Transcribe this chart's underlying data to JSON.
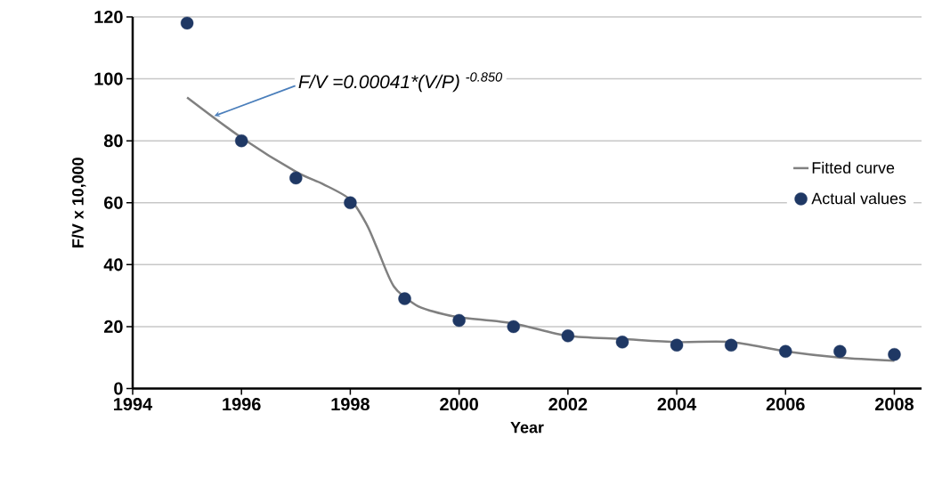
{
  "chart_data": {
    "type": "line",
    "xlabel": "Year",
    "ylabel": "F/V x 10,000",
    "xlim": [
      1994,
      2008.5
    ],
    "xticks": [
      1994,
      1996,
      1998,
      2000,
      2002,
      2004,
      2006,
      2008
    ],
    "ylim": [
      0,
      120
    ],
    "yticks": [
      0,
      20,
      40,
      60,
      80,
      100,
      120
    ],
    "grid": "y",
    "legend": "right",
    "annotations": [
      {
        "text": "F/V =0.00041*(V/P) $^{-0.850}$",
        "x": 1995.5,
        "y": 88
      }
    ],
    "series": [
      {
        "name": "Fitted curve",
        "color": "#808080",
        "marker": "none",
        "x": [
          1995,
          1996,
          1997,
          1997.5,
          1998,
          1998.3,
          1998.5,
          1998.8,
          1999.2,
          1999.5,
          2000,
          2001,
          2002,
          2003,
          2004,
          2005,
          2006,
          2007,
          2008
        ],
        "values": [
          94,
          81,
          70,
          66,
          61,
          53,
          45,
          33,
          27,
          25,
          23,
          21,
          17,
          16,
          15,
          15,
          12,
          10,
          9
        ]
      },
      {
        "name": "Actual values",
        "type": "scatter",
        "color": "#1f3864",
        "marker": "circle",
        "x": [
          1995,
          1996,
          1997,
          1998,
          1999,
          2000,
          2001,
          2002,
          2003,
          2004,
          2005,
          2006,
          2007,
          2008
        ],
        "values": [
          118,
          80,
          68,
          60,
          29,
          22,
          20,
          17,
          15,
          14,
          14,
          12,
          12,
          11
        ]
      }
    ]
  }
}
